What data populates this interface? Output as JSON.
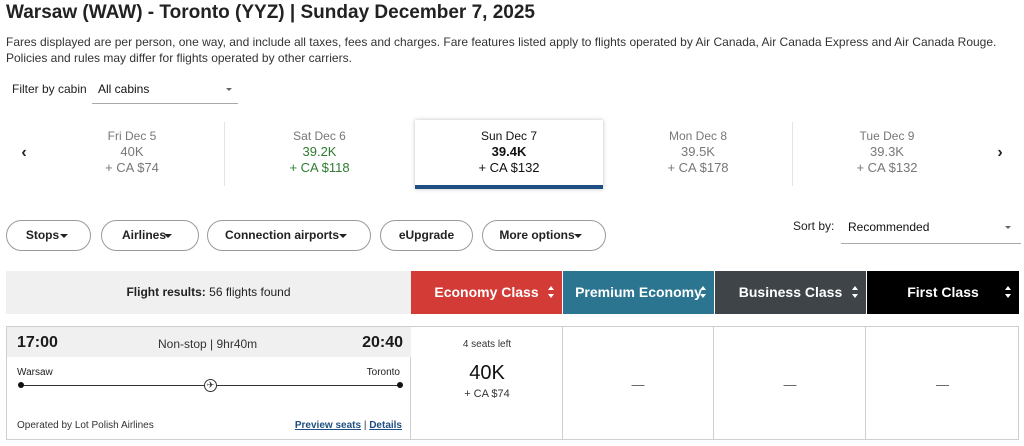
{
  "header": {
    "title": "Warsaw (WAW) - Toronto (YYZ)  |  Sunday December 7, 2025",
    "notice": "Fares displayed are per person, one way, and include all taxes, fees and charges. Fare features listed apply to flights operated by Air Canada, Air Canada Express and Air Canada Rouge. Policies and rules may differ for flights operated by other carriers."
  },
  "filter": {
    "label": "Filter by cabin",
    "value": "All cabins"
  },
  "dates": {
    "prev_icon": "chevron-left-icon",
    "next_icon": "chevron-right-icon",
    "prev_glyph": "‹",
    "next_glyph": "›",
    "items": [
      {
        "day": "Fri Dec 5",
        "points": "40K",
        "cash": "+ CA $74"
      },
      {
        "day": "Sat Dec 6",
        "points": "39.2K",
        "cash": "+ CA $118"
      },
      {
        "day": "Sun Dec 7",
        "points": "39.4K",
        "cash": "+ CA $132"
      },
      {
        "day": "Mon Dec 8",
        "points": "39.5K",
        "cash": "+ CA $178"
      },
      {
        "day": "Tue Dec 9",
        "points": "39.3K",
        "cash": "+ CA $132"
      }
    ],
    "selected_index": 2,
    "lowest_index": 1
  },
  "filters": {
    "stops": "Stops",
    "airlines": "Airlines",
    "connection": "Connection airports",
    "eupgrade": "eUpgrade",
    "more": "More options"
  },
  "sort": {
    "label": "Sort by:",
    "value": "Recommended"
  },
  "results": {
    "label": "Flight results:",
    "count": "56 flights found"
  },
  "cabins": [
    {
      "name": "Economy Class",
      "color": "#d33b36"
    },
    {
      "name": "Premium Economy",
      "color": "#2c7590"
    },
    {
      "name": "Business Class",
      "color": "#3f4448"
    },
    {
      "name": "First Class",
      "color": "#000000"
    }
  ],
  "flight": {
    "departure": "17:00",
    "arrival": "20:40",
    "duration": "Non-stop | 9hr40m",
    "origin": "Warsaw",
    "destination": "Toronto",
    "operator": "Operated by Lot Polish Airlines",
    "preview_seats": "Preview seats",
    "separator": "|",
    "details": "Details",
    "fares": {
      "economy": {
        "seats": "4 seats left",
        "points": "40K",
        "cash": "+ CA $74"
      },
      "premium": "—",
      "business": "—",
      "first": "—"
    }
  }
}
